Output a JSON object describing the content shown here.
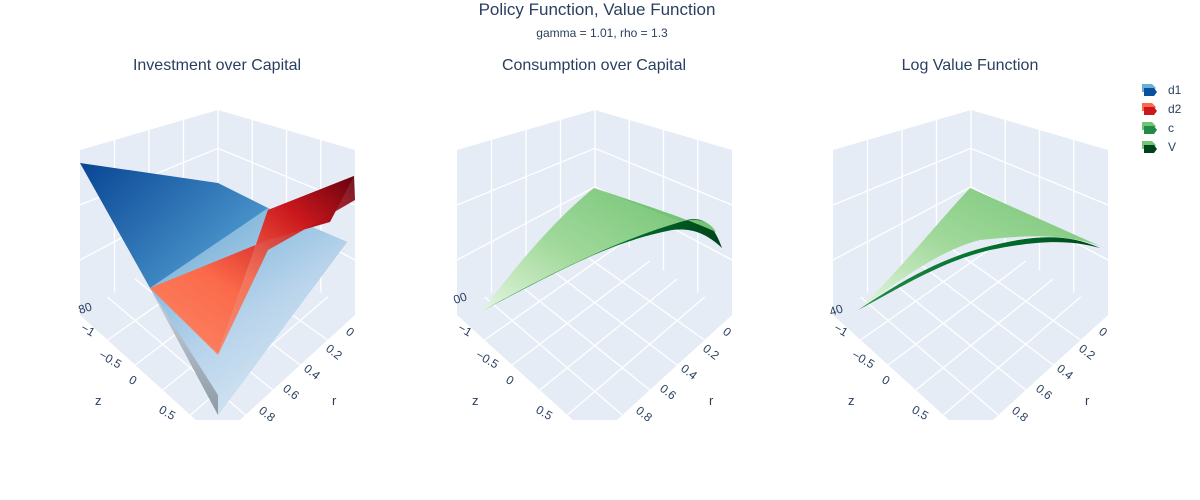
{
  "title": "Policy Function, Value Function",
  "subtitle": "gamma = 1.01, rho = 1.3",
  "legend": [
    {
      "label": "d1",
      "colors": [
        "#084594",
        "#6baed6"
      ]
    },
    {
      "label": "d2",
      "colors": [
        "#67000d",
        "#fb6a4a"
      ]
    },
    {
      "label": "c",
      "colors": [
        "#00441b",
        "#74c476"
      ]
    },
    {
      "label": "V",
      "colors": [
        "#00441b",
        "#74c476"
      ]
    }
  ],
  "chart_data": [
    {
      "type": "surface3d",
      "title": "Investment over Capital",
      "traces": [
        "d1",
        "d2"
      ],
      "axes": {
        "z_title": "z",
        "z_ticks": [
          "−1",
          "−0.5",
          "0",
          "0.5"
        ],
        "r_title": "r",
        "r_ticks": [
          "0",
          "0.2",
          "0.4",
          "0.6",
          "0.8"
        ],
        "vertical_partial_tick": "80"
      }
    },
    {
      "type": "surface3d",
      "title": "Consumption over Capital",
      "traces": [
        "c"
      ],
      "axes": {
        "z_title": "z",
        "z_ticks": [
          "−1",
          "−0.5",
          "0",
          "0.5"
        ],
        "r_title": "r",
        "r_ticks": [
          "0",
          "0.2",
          "0.4",
          "0.6",
          "0.8"
        ],
        "vertical_partial_tick": "00"
      }
    },
    {
      "type": "surface3d",
      "title": "Log Value Function",
      "traces": [
        "V"
      ],
      "axes": {
        "z_title": "z",
        "z_ticks": [
          "−1",
          "−0.5",
          "0",
          "0.5"
        ],
        "r_title": "r",
        "r_ticks": [
          "0",
          "0.2",
          "0.4",
          "0.6",
          "0.8"
        ],
        "vertical_partial_tick": "40"
      }
    }
  ]
}
